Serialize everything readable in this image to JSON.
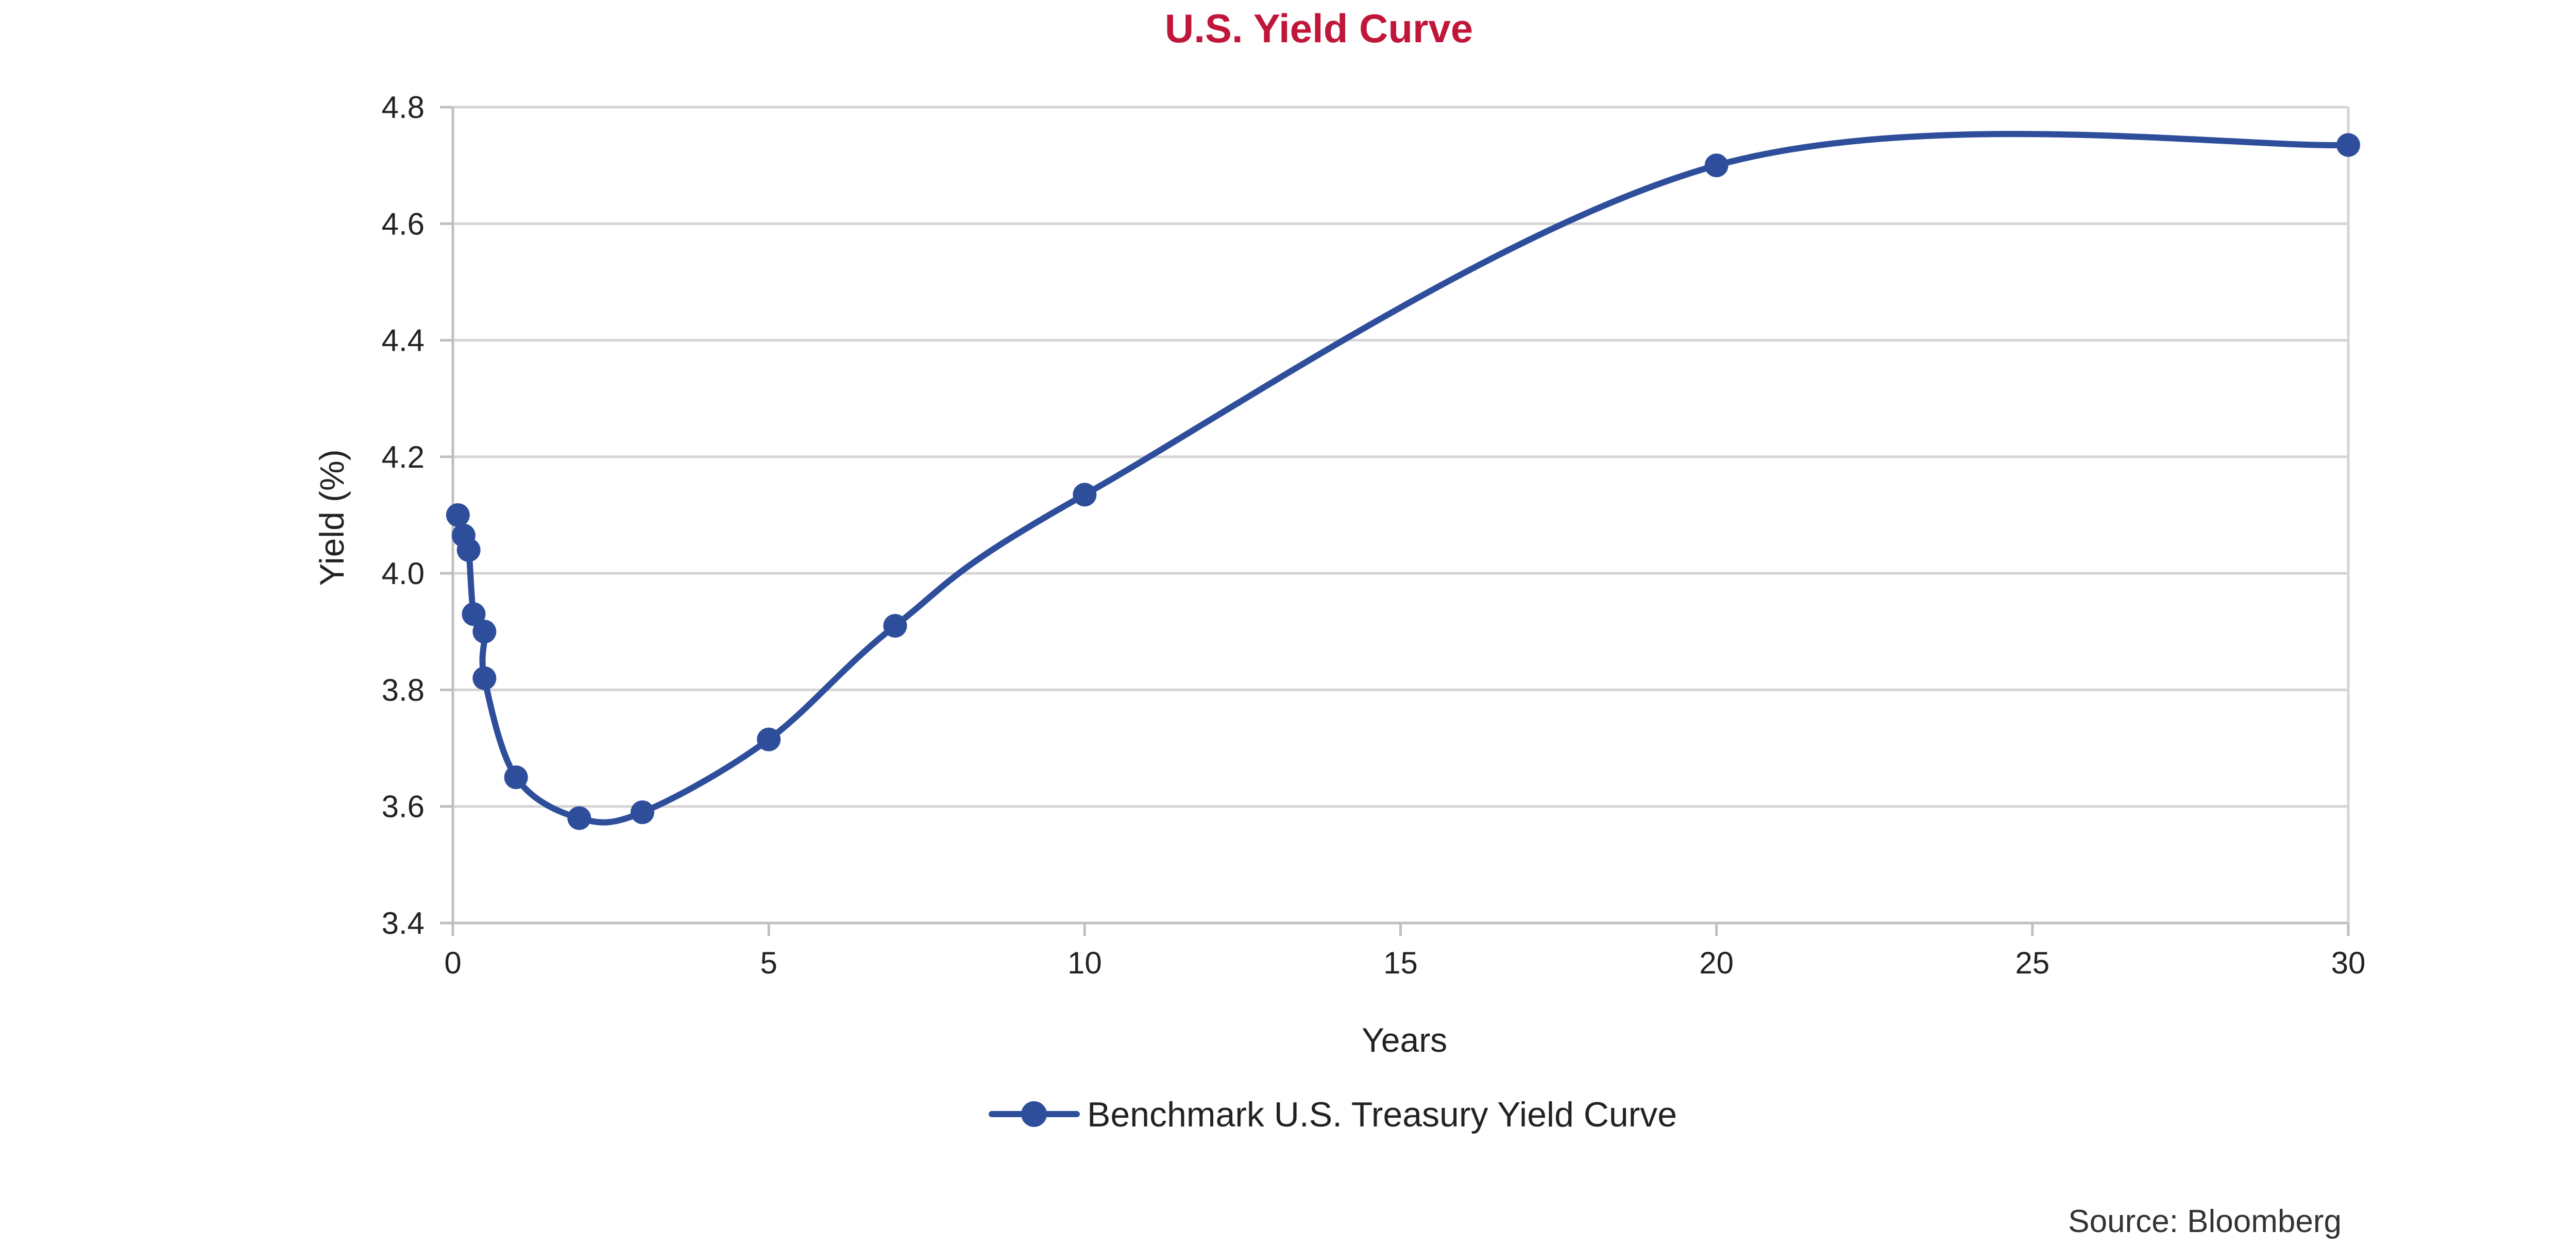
{
  "chart_data": {
    "type": "line",
    "title": "U.S. Yield Curve",
    "xlabel": "Years",
    "ylabel": "Yield (%)",
    "xlim": [
      0,
      30
    ],
    "ylim": [
      3.4,
      4.8
    ],
    "x_ticks": [
      0,
      5,
      10,
      15,
      20,
      25,
      30
    ],
    "y_ticks": [
      3.4,
      3.6,
      3.8,
      4.0,
      4.2,
      4.4,
      4.6,
      4.8
    ],
    "x_tick_labels": [
      "0",
      "5",
      "10",
      "15",
      "20",
      "25",
      "30"
    ],
    "y_tick_labels": [
      "3.4",
      "3.6",
      "3.8",
      "4.0",
      "4.2",
      "4.4",
      "4.6",
      "4.8"
    ],
    "grid": "horizontal",
    "smooth": true,
    "legend_position": "bottom",
    "series": [
      {
        "name": "Benchmark U.S. Treasury Yield Curve",
        "color": "#2e4e9c",
        "points": [
          {
            "x": 0.08,
            "y": 4.1
          },
          {
            "x": 0.17,
            "y": 4.065
          },
          {
            "x": 0.25,
            "y": 4.04
          },
          {
            "x": 0.33,
            "y": 3.93
          },
          {
            "x": 0.5,
            "y": 3.9
          },
          {
            "x": 0.5,
            "y": 3.82
          },
          {
            "x": 1,
            "y": 3.65
          },
          {
            "x": 2,
            "y": 3.58
          },
          {
            "x": 3,
            "y": 3.59
          },
          {
            "x": 5,
            "y": 3.715
          },
          {
            "x": 7,
            "y": 3.91
          },
          {
            "x": 10,
            "y": 4.135
          },
          {
            "x": 20,
            "y": 4.7
          },
          {
            "x": 30,
            "y": 4.735
          }
        ]
      }
    ]
  },
  "source": "Source: Bloomberg"
}
